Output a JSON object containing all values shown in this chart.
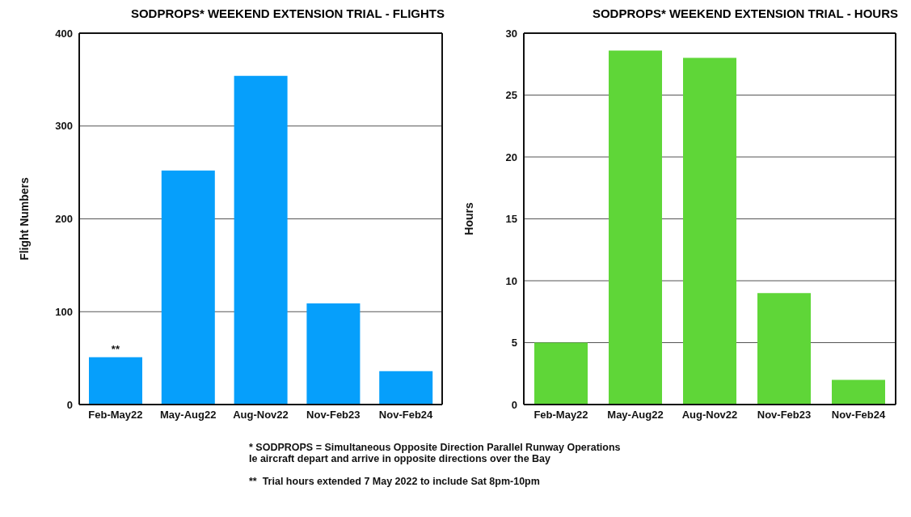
{
  "chart_data": [
    {
      "type": "bar",
      "title": "SODPROPS* WEEKEND EXTENSION TRIAL - FLIGHTS",
      "ylabel": "Flight Numbers",
      "categories": [
        "Feb-May22",
        "May-Aug22",
        "Aug-Nov22",
        "Nov-Feb23",
        "Nov-Feb24"
      ],
      "values": [
        51,
        252,
        354,
        109,
        36
      ],
      "color": "#069ffb",
      "ylim": [
        0,
        400
      ],
      "yticks": [
        0,
        100,
        200,
        300,
        400
      ],
      "grid": "y",
      "annotations": [
        {
          "text": "**",
          "x": "Feb-May22",
          "y": 51
        },
        "* SODPROPS = Simultaneous Opposite Direction Parallel Runway Operations\nIe aircraft depart and arrive in opposite directions over the Bay",
        "**  Trial hours extended 7 May 2022 to include Sat 8pm-10pm"
      ]
    },
    {
      "type": "bar",
      "title": "SODPROPS* WEEKEND EXTENSION TRIAL - HOURS",
      "ylabel": "Hours",
      "categories": [
        "Feb-May22",
        "May-Aug22",
        "Aug-Nov22",
        "Nov-Feb23",
        "Nov-Feb24"
      ],
      "values": [
        5,
        28.6,
        28,
        9,
        2
      ],
      "color": "#5fd638",
      "ylim": [
        0,
        30
      ],
      "yticks": [
        0,
        5,
        10,
        15,
        20,
        25,
        30
      ],
      "grid": "y"
    }
  ]
}
